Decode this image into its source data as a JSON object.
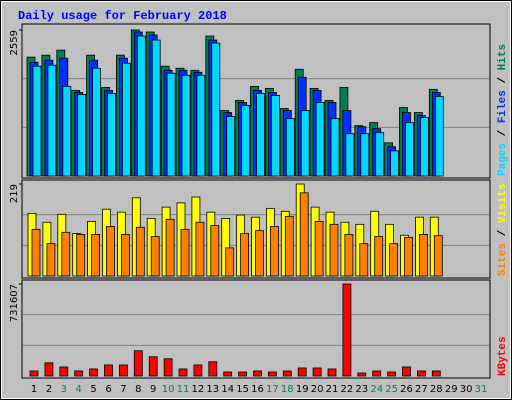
{
  "title": "Daily usage for February 2018",
  "chart_data": [
    {
      "type": "bar",
      "ylim": [
        0,
        2559
      ],
      "yticks": [
        2559
      ],
      "series": [
        {
          "name": "Hits",
          "color": "#008050",
          "values": [
            2083,
            2118,
            2206,
            1500,
            2118,
            1553,
            2118,
            2559,
            2524,
            1924,
            1889,
            1853,
            2453,
            1147,
            1324,
            1571,
            1536,
            1183,
            1871,
            1536,
            1324,
            1553,
            883,
            936,
            582,
            1200,
            1112,
            1518,
            null,
            null,
            null
          ]
        },
        {
          "name": "Files",
          "color": "#0030ff",
          "values": [
            1994,
            2030,
            2065,
            1465,
            2030,
            1500,
            2065,
            2524,
            2471,
            1853,
            1853,
            1818,
            2383,
            1112,
            1288,
            1500,
            1465,
            1147,
            1730,
            1500,
            1288,
            1147,
            865,
            830,
            512,
            1112,
            1059,
            1465,
            null,
            null,
            null
          ]
        },
        {
          "name": "Pages",
          "color": "#00d8ff",
          "values": [
            1924,
            1942,
            1571,
            1430,
            1889,
            1447,
            1977,
            2453,
            2383,
            1800,
            1765,
            1765,
            2330,
            1041,
            1236,
            1447,
            1412,
            1006,
            1147,
            1288,
            1006,
            741,
            741,
            759,
            441,
            935,
            1024,
            1394,
            null,
            null,
            null
          ]
        }
      ]
    },
    {
      "type": "bar",
      "ylim": [
        0,
        219
      ],
      "yticks": [
        219
      ],
      "series": [
        {
          "name": "Visits",
          "color": "#ffff00",
          "values": [
            149,
            128,
            147,
            101,
            130,
            159,
            152,
            186,
            137,
            164,
            174,
            188,
            152,
            137,
            145,
            140,
            161,
            154,
            219,
            164,
            152,
            128,
            123,
            154,
            123,
            97,
            140,
            140,
            null,
            null,
            null
          ]
        },
        {
          "name": "Sites",
          "color": "#ff8000",
          "values": [
            111,
            77,
            104,
            99,
            99,
            118,
            99,
            116,
            94,
            135,
            111,
            128,
            120,
            67,
            101,
            108,
            118,
            142,
            198,
            130,
            123,
            99,
            77,
            94,
            77,
            92,
            99,
            96,
            null,
            null,
            null
          ]
        }
      ]
    },
    {
      "type": "bar",
      "ylim": [
        0,
        731607
      ],
      "yticks": [
        731607
      ],
      "categories": [
        "1",
        "2",
        "3",
        "4",
        "5",
        "6",
        "7",
        "8",
        "9",
        "10",
        "11",
        "12",
        "13",
        "14",
        "15",
        "16",
        "17",
        "18",
        "19",
        "20",
        "21",
        "22",
        "23",
        "24",
        "25",
        "26",
        "27",
        "28",
        "29",
        "30",
        "31"
      ],
      "label_colors": [
        "#000",
        "#000",
        "#008050",
        "#008050",
        "#000",
        "#000",
        "#000",
        "#000",
        "#000",
        "#008050",
        "#008050",
        "#000",
        "#000",
        "#000",
        "#000",
        "#000",
        "#008050",
        "#008050",
        "#000",
        "#000",
        "#000",
        "#000",
        "#000",
        "#008050",
        "#008050",
        "#000",
        "#000",
        "#000",
        "#000",
        "#000",
        "#008050"
      ],
      "series": [
        {
          "name": "KBytes",
          "color": "#ff0000",
          "values": [
            40000,
            105000,
            72000,
            40000,
            56000,
            88000,
            88000,
            201000,
            153000,
            137000,
            56000,
            88000,
            113000,
            32000,
            32000,
            40000,
            32000,
            40000,
            64000,
            64000,
            56000,
            731607,
            24000,
            40000,
            32000,
            72000,
            40000,
            40000,
            null,
            null,
            null
          ]
        }
      ]
    }
  ]
}
